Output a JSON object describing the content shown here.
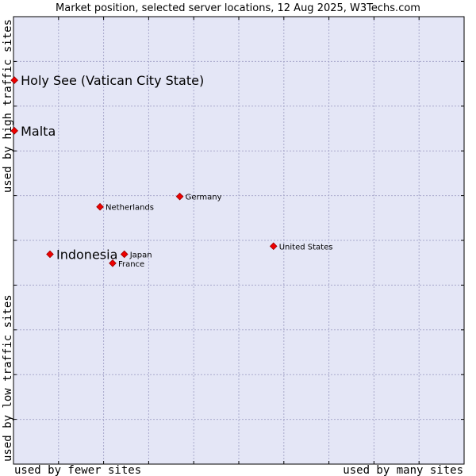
{
  "chart_data": {
    "type": "scatter",
    "title": "Market position, selected server locations, 12 Aug 2025, W3Techs.com",
    "xlabel_left": "used by fewer sites",
    "xlabel_right": "used by many sites",
    "ylabel_bottom": "used by low traffic sites",
    "ylabel_top": "used by high traffic sites",
    "xlim": [
      0,
      100
    ],
    "ylim": [
      0,
      100
    ],
    "grid": true,
    "gridlines": 10,
    "colors": {
      "plot_bg": "#e4e6f6",
      "grid": "#a9a9cc",
      "marker": "#ee0000",
      "marker_stroke": "#990000"
    },
    "points": [
      {
        "label": "Holy See (Vatican City State)",
        "x": 0.2,
        "y": 85.8,
        "highlight": true
      },
      {
        "label": "Malta",
        "x": 0.2,
        "y": 74.5,
        "highlight": true
      },
      {
        "label": "Germany",
        "x": 36.9,
        "y": 59.8,
        "highlight": false
      },
      {
        "label": "Netherlands",
        "x": 19.2,
        "y": 57.5,
        "highlight": false
      },
      {
        "label": "United States",
        "x": 57.7,
        "y": 48.7,
        "highlight": false
      },
      {
        "label": "Indonesia",
        "x": 8.1,
        "y": 46.9,
        "highlight": true
      },
      {
        "label": "Japan",
        "x": 24.6,
        "y": 46.9,
        "highlight": false
      },
      {
        "label": "France",
        "x": 22.0,
        "y": 44.9,
        "highlight": false
      }
    ]
  }
}
